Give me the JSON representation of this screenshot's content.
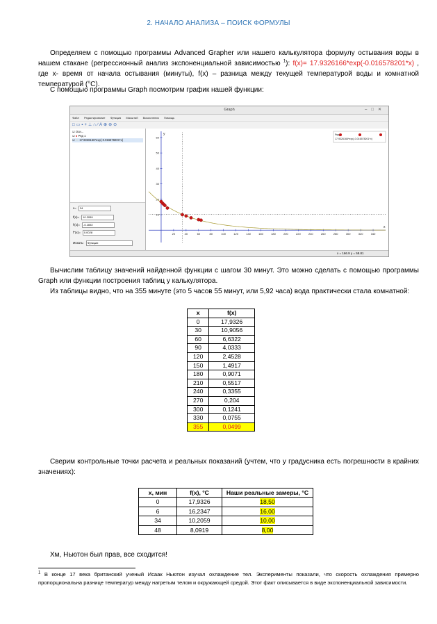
{
  "heading": "2. НАЧАЛО АНАЛИЗА – ПОИСК ФОРМУЛЫ",
  "p1": {
    "text_a": "Определяем с помощью программы Advanced Grapher или нашего калькулятора формулу остывания воды в нашем стакане (регрессионный анализ экспоненциальной зависимостью ",
    "footnote_ref": "1",
    "text_b": "): ",
    "formula": "f(x)= 17.9326166*exp(-0.016578201*x)",
    "text_c": " , где x- время от начала остывания (минуты), f(x) – разница между текущей температурой воды и комнатной температурой (°C)."
  },
  "p2": "С помощью программы Graph посмотрим график нашей функции:",
  "graph_window": {
    "title": "Graph",
    "menu": [
      "Файл",
      "Редактирование",
      "Функция",
      "Масштаб",
      "Вычисления",
      "Помощь"
    ],
    "tree": [
      "Оси...",
      "Ряд 1",
      "17.9326166*exp(-0.016578201*x)"
    ],
    "legend": [
      "Ряд 1",
      "17.9326166*exp(-0.016578201*x)"
    ],
    "calc_x_label": "x=",
    "calc_x_value": "34",
    "calc_rows": [
      {
        "label": "f(x)=",
        "value": "10.2059"
      },
      {
        "label": "f'(x)=",
        "value": "-0.1692"
      },
      {
        "label": "f''(x)=",
        "value": "0.0028"
      }
    ],
    "search_label": "Искать:",
    "search_value": "Функции",
    "status": "x = 166.9    y = 58.81",
    "axis_y_label": "y",
    "axis_x_label": "x"
  },
  "chart_data": {
    "type": "scatter",
    "title": "",
    "xlabel": "x",
    "ylabel": "y",
    "xlim": [
      -20,
      360
    ],
    "ylim": [
      -8,
      64
    ],
    "x_ticks": [
      20,
      40,
      60,
      80,
      100,
      120,
      140,
      160,
      180,
      200,
      220,
      240,
      260,
      280,
      300,
      320,
      340
    ],
    "y_ticks": [
      10,
      20,
      30,
      40,
      50,
      60
    ],
    "series": [
      {
        "name": "Ряд 1",
        "x": [
          0,
          2,
          4,
          6,
          10,
          34,
          40,
          48,
          60,
          64
        ],
        "y": [
          18.5,
          17.5,
          16.8,
          16.0,
          14.3,
          10.0,
          9.2,
          8.0,
          6.8,
          6.5
        ]
      },
      {
        "name": "17.9326166*exp(-0.016578201*x)",
        "function": "17.9326166*exp(-0.016578201*x)",
        "x_range": [
          -20,
          360
        ]
      }
    ],
    "markers": {
      "vertical_x": 34,
      "horizontal_y": 10.2059
    }
  },
  "p3": "Вычислим таблицу значений найденной функции с шагом 30 минут. Это можно сделать с помощью программы Graph или функции построения таблиц у калькулятора.",
  "p4": "Из таблицы видно, что на 355 минуте (это 5 часов 55 минут, или 5,92 часа) вода практически стала комнатной:",
  "table1": {
    "headers": [
      "x",
      "f(x)"
    ],
    "rows": [
      [
        "0",
        "17,9326"
      ],
      [
        "30",
        "10,9056"
      ],
      [
        "60",
        "6,6322"
      ],
      [
        "90",
        "4,0333"
      ],
      [
        "120",
        "2,4528"
      ],
      [
        "150",
        "1,4917"
      ],
      [
        "180",
        "0,9071"
      ],
      [
        "210",
        "0,5517"
      ],
      [
        "240",
        "0,3355"
      ],
      [
        "270",
        "0,204"
      ],
      [
        "300",
        "0,1241"
      ],
      [
        "330",
        "0,0755"
      ],
      [
        "355",
        "0,0499"
      ]
    ]
  },
  "p5": "Сверим контрольные точки расчета и реальных показаний (учтем, что у градусника есть погрешности в крайних значениях):",
  "table2": {
    "headers": [
      "x, мин",
      "f(x), °C",
      "Наши реальные замеры, °C"
    ],
    "rows": [
      [
        "0",
        "17,9326",
        "18,50"
      ],
      [
        "6",
        "16,2347",
        "16,00"
      ],
      [
        "34",
        "10,2059",
        "10,00"
      ],
      [
        "48",
        "8,0919",
        "8,00"
      ]
    ]
  },
  "p6": "Хм, Ньютон был прав, все сходится!",
  "footnote": {
    "mark": "1",
    "text": " В конце 17 века британский ученый Исаак Ньютон изучал охлаждение тел. Эксперименты показали, что скорость охлаждения примерно пропорциональна разнице температур между нагретым телом и окружающей средой. Этот факт описывается в виде экспоненциальной зависимости."
  }
}
